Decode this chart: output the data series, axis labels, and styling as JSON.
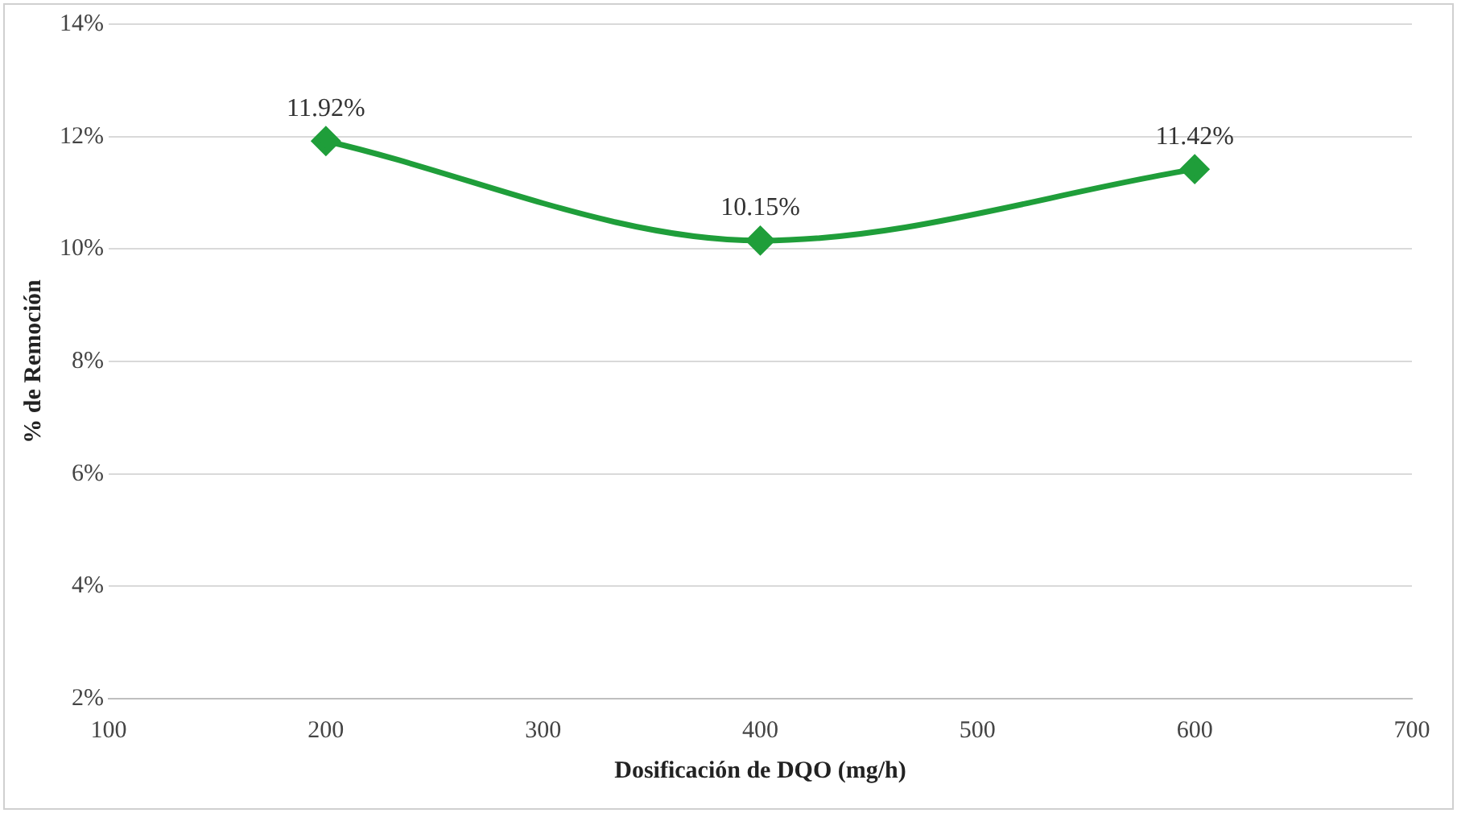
{
  "chart_data": {
    "type": "line",
    "xlabel": "Dosificación de DQO (mg/h)",
    "ylabel": "% de Remoción",
    "x": [
      200,
      400,
      600
    ],
    "series": [
      {
        "color": "#1f9e3a",
        "values": [
          11.92,
          10.15,
          11.42
        ],
        "value_labels": [
          "11.92%",
          "10.15%",
          "11.42%"
        ]
      }
    ],
    "xlim": [
      100,
      700
    ],
    "xticks": [
      100,
      200,
      300,
      400,
      500,
      600,
      700
    ],
    "ylim": [
      2,
      14
    ],
    "yticks": [
      {
        "value": 2,
        "label": "2%"
      },
      {
        "value": 4,
        "label": "4%"
      },
      {
        "value": 6,
        "label": "6%"
      },
      {
        "value": 8,
        "label": "8%"
      },
      {
        "value": 10,
        "label": "10%"
      },
      {
        "value": 12,
        "label": "12%"
      },
      {
        "value": 14,
        "label": "14%"
      }
    ],
    "grid": "y",
    "marker": "diamond",
    "line_style": "solid",
    "legend": false
  }
}
